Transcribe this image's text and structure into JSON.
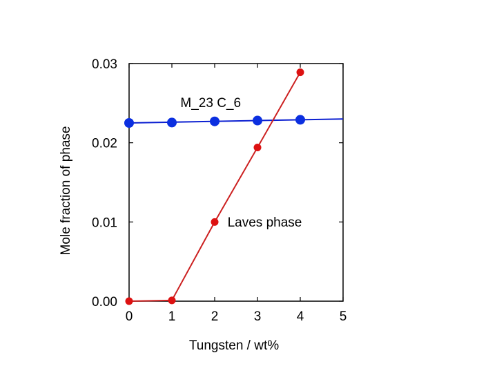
{
  "chart_data": {
    "type": "line",
    "title": "",
    "xlabel": "Tungsten / wt%",
    "ylabel": "Mole fraction of phase",
    "xlim": [
      0,
      5
    ],
    "ylim": [
      0,
      0.03
    ],
    "x_ticks": [
      0,
      1,
      2,
      3,
      4,
      5
    ],
    "x_tick_labels": [
      "0",
      "1",
      "2",
      "3",
      "4",
      "5"
    ],
    "y_ticks": [
      0,
      0.01,
      0.02,
      0.03
    ],
    "y_tick_labels": [
      "0.00",
      "0.01",
      "0.02",
      "0.03"
    ],
    "grid": false,
    "series": [
      {
        "name": "M_23 C_6",
        "color": "#0b1fd1",
        "marker_color": "#0b2fe0",
        "x": [
          0,
          1,
          2,
          3,
          4
        ],
        "values": [
          0.0225,
          0.02255,
          0.0227,
          0.0228,
          0.0229
        ],
        "line_x": [
          0,
          5
        ],
        "line_y": [
          0.0225,
          0.023
        ]
      },
      {
        "name": "Laves phase",
        "color": "#cc2020",
        "marker_color": "#dd1111",
        "x": [
          0,
          1,
          2,
          3,
          4
        ],
        "values": [
          0.0,
          0.0001,
          0.01,
          0.0194,
          0.0289
        ],
        "line_x": [
          0,
          1,
          2,
          3,
          4
        ],
        "line_y": [
          0.0,
          0.0001,
          0.01,
          0.0194,
          0.0289
        ]
      }
    ],
    "annotations": [
      {
        "text": "M_23 C_6",
        "x": 1.2,
        "y": 0.0245
      },
      {
        "text": "Laves phase",
        "x": 2.3,
        "y": 0.0094
      }
    ]
  }
}
